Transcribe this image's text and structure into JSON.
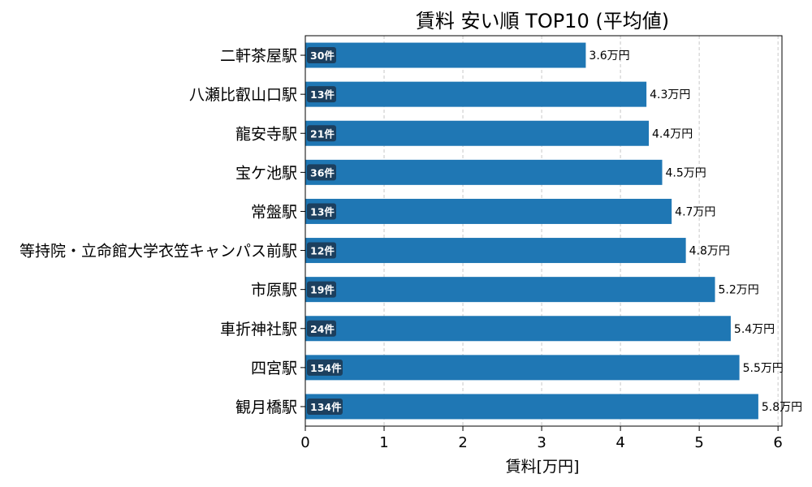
{
  "chart_data": {
    "type": "bar",
    "orientation": "horizontal",
    "title": "賃料 安い順 TOP10 (平均値)",
    "xlabel": "賃料[万円]",
    "ylabel": "",
    "xlim": [
      0,
      6.05
    ],
    "xticks": [
      0,
      1,
      2,
      3,
      4,
      5,
      6
    ],
    "grid": "x-dashed",
    "categories": [
      "二軒茶屋駅",
      "八瀬比叡山口駅",
      "龍安寺駅",
      "宝ケ池駅",
      "常盤駅",
      "等持院・立命館大学衣笠キャンパス前駅",
      "市原駅",
      "車折神社駅",
      "四宮駅",
      "観月橋駅"
    ],
    "values": [
      3.56,
      4.33,
      4.36,
      4.53,
      4.65,
      4.83,
      5.2,
      5.4,
      5.51,
      5.75
    ],
    "value_labels": [
      "3.6万円",
      "4.3万円",
      "4.4万円",
      "4.5万円",
      "4.7万円",
      "4.8万円",
      "5.2万円",
      "5.4万円",
      "5.5万円",
      "5.8万円"
    ],
    "count_labels": [
      "30件",
      "13件",
      "21件",
      "36件",
      "13件",
      "12件",
      "19件",
      "24件",
      "154件",
      "134件"
    ],
    "colors": {
      "bar": "#1f77b4",
      "badge": "#1c3f5e",
      "grid": "#c8c8c8"
    }
  }
}
